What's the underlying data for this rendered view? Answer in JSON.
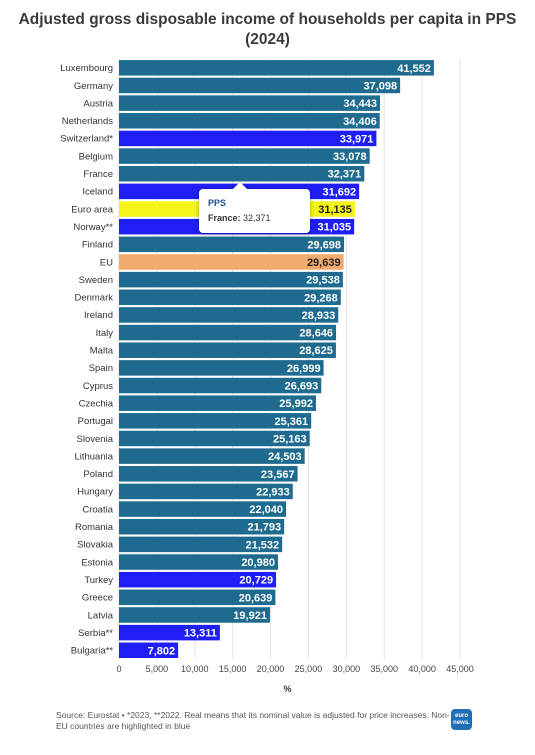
{
  "title": "Adjusted gross disposable income of households per capita in PPS (2024)",
  "chart_data": {
    "type": "bar",
    "orientation": "horizontal",
    "xlabel": "%",
    "xlim": [
      0,
      45000
    ],
    "xticks": [
      "0",
      "5,000",
      "10,000",
      "15,000",
      "20,000",
      "25,000",
      "30,000",
      "35,000",
      "40,000",
      "45,000"
    ],
    "grid": true,
    "categories": [
      "Luxembourg",
      "Germany",
      "Austria",
      "Netherlands",
      "Switzerland*",
      "Belgium",
      "France",
      "Iceland",
      "Euro area",
      "Norway**",
      "Finland",
      "EU",
      "Sweden",
      "Denmark",
      "Ireland",
      "Italy",
      "Malta",
      "Spain",
      "Cyprus",
      "Czechia",
      "Portugal",
      "Slovenia",
      "Lithuania",
      "Poland",
      "Hungary",
      "Croatia",
      "Romania",
      "Slovakia",
      "Estonia",
      "Turkey",
      "Greece",
      "Latvia",
      "Serbia**",
      "Bulgaria**"
    ],
    "values": [
      41552,
      37098,
      34443,
      34406,
      33971,
      33078,
      32371,
      31692,
      31135,
      31035,
      29698,
      29639,
      29538,
      29268,
      28933,
      28646,
      28625,
      26999,
      26693,
      25992,
      25361,
      25163,
      24503,
      23567,
      22933,
      22040,
      21793,
      21532,
      20980,
      20729,
      20639,
      19921,
      13311,
      7802
    ],
    "value_labels": [
      "41,552",
      "37,098",
      "34,443",
      "34,406",
      "33,971",
      "33,078",
      "32,371",
      "31,692",
      "31,135",
      "31,035",
      "29,698",
      "29,639",
      "29,538",
      "29,268",
      "28,933",
      "28,646",
      "28,625",
      "26,999",
      "26,693",
      "25,992",
      "25,361",
      "25,163",
      "24,503",
      "23,567",
      "22,933",
      "22,040",
      "21,793",
      "21,532",
      "20,980",
      "20,729",
      "20,639",
      "19,921",
      "13,311",
      "7,802"
    ],
    "groups": [
      "eu",
      "eu",
      "eu",
      "eu",
      "non-eu",
      "eu",
      "eu",
      "non-eu",
      "euro-area",
      "non-eu",
      "eu",
      "eu-average",
      "eu",
      "eu",
      "eu",
      "eu",
      "eu",
      "eu",
      "eu",
      "eu",
      "eu",
      "eu",
      "eu",
      "eu",
      "eu",
      "eu",
      "eu",
      "eu",
      "eu",
      "non-eu",
      "eu",
      "eu",
      "non-eu",
      "non-eu"
    ],
    "colors": {
      "eu": "#1e6b8f",
      "non-eu": "#1f1ff5",
      "euro-area": "#f5f51a",
      "eu-average": "#f0ab6c",
      "label_light": "#ffffff",
      "label_dark": "#222222"
    },
    "tooltip": {
      "header": "PPS",
      "label": "France:",
      "value": "32,371"
    }
  },
  "footer": {
    "source": "Source: Eurostat • *2023, **2022. Real means that its nominal value is adjusted for price increases. Non-EU countries are highlighted in blue",
    "logo": "euro news."
  }
}
